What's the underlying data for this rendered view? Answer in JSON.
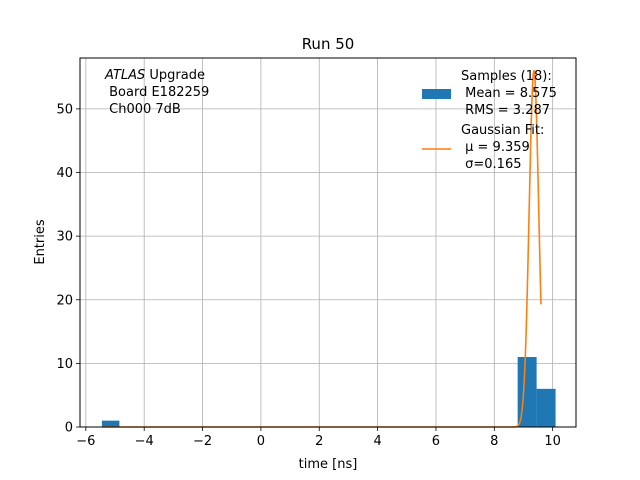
{
  "chart_data": {
    "type": "bar",
    "title": "Run 50",
    "xlabel": "time [ns]",
    "ylabel": "Entries",
    "xlim": [
      -6.2,
      10.8
    ],
    "ylim": [
      0,
      58
    ],
    "xticks": [
      -6,
      -4,
      -2,
      0,
      2,
      4,
      6,
      8,
      10
    ],
    "yticks": [
      0,
      10,
      20,
      30,
      40,
      50
    ],
    "grid": true,
    "legend_position": "top-right",
    "annotation": {
      "line1_italic": "ATLAS",
      "line1_rest": " Upgrade",
      "line2": " Board E182259",
      "line3": " Ch000 7dB"
    },
    "histogram": {
      "name": "Samples (18):",
      "stats": [
        " Mean = 8.575",
        " RMS = 3.287"
      ],
      "color": "#1f77b4",
      "bins": [
        {
          "x0": -5.45,
          "x1": -4.85,
          "count": 1
        },
        {
          "x0": 8.8,
          "x1": 9.45,
          "count": 11
        },
        {
          "x0": 9.45,
          "x1": 10.1,
          "count": 6
        }
      ]
    },
    "fit": {
      "name": "Gaussian Fit:",
      "stats": [
        " μ = 9.359",
        " σ=0.165"
      ],
      "color": "#ff7f0e",
      "mu": 9.359,
      "sigma": 0.165,
      "amplitude": 56,
      "x_range": [
        -5.45,
        9.6
      ]
    }
  }
}
